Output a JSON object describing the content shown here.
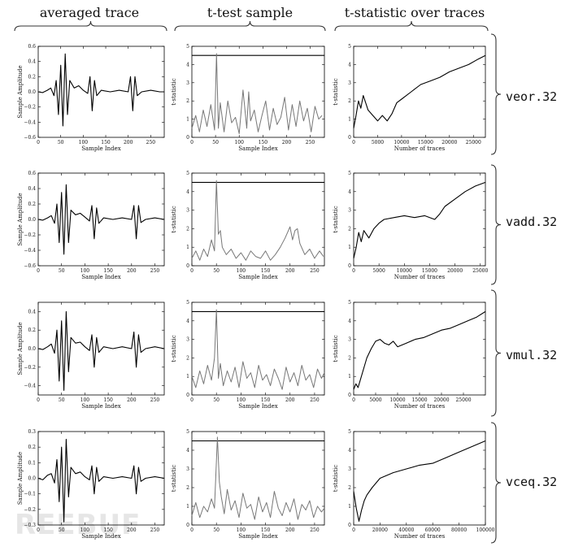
{
  "columns": {
    "avg": "averaged trace",
    "ttest": "t-test sample",
    "tstat": "t-statistic over traces"
  },
  "rows": [
    "veor.32",
    "vadd.32",
    "vmul.32",
    "vceq.32"
  ],
  "watermark": "REEBUF",
  "chart_data": [
    {
      "panel": "avg-veor",
      "type": "line",
      "xlabel": "Sample Index",
      "ylabel": "Sample Amplitude",
      "xlim": [
        0,
        280
      ],
      "ylim": [
        -0.6,
        0.6
      ],
      "xticks": [
        0,
        50,
        100,
        150,
        200,
        250
      ],
      "yticks": [
        -0.6,
        -0.4,
        -0.2,
        0.0,
        0.2,
        0.4,
        0.6
      ],
      "x": [
        0,
        10,
        20,
        28,
        35,
        40,
        45,
        50,
        55,
        60,
        65,
        70,
        80,
        90,
        100,
        110,
        115,
        120,
        125,
        130,
        140,
        160,
        180,
        200,
        205,
        210,
        215,
        220,
        230,
        250,
        270,
        280
      ],
      "y": [
        0,
        -0.01,
        0.02,
        0.05,
        -0.05,
        0.15,
        -0.3,
        0.35,
        -0.45,
        0.5,
        -0.3,
        0.15,
        0.05,
        0.08,
        0.02,
        -0.02,
        0.2,
        -0.25,
        0.15,
        -0.05,
        0.02,
        0.0,
        0.02,
        0.0,
        0.2,
        -0.25,
        0.2,
        -0.05,
        0.0,
        0.02,
        0.0,
        0.0
      ]
    },
    {
      "panel": "ttest-veor",
      "type": "line",
      "xlabel": "Sample Index",
      "ylabel": "t-statistic",
      "xlim": [
        0,
        280
      ],
      "ylim": [
        0,
        5
      ],
      "xticks": [
        0,
        50,
        100,
        150,
        200,
        250
      ],
      "yticks": [
        0,
        1,
        2,
        3,
        4,
        5
      ],
      "threshold": 4.5,
      "x": [
        0,
        8,
        16,
        24,
        32,
        40,
        48,
        52,
        56,
        60,
        68,
        76,
        84,
        92,
        100,
        108,
        116,
        120,
        124,
        132,
        140,
        148,
        156,
        164,
        172,
        180,
        188,
        196,
        204,
        212,
        220,
        228,
        236,
        244,
        252,
        260,
        268,
        275
      ],
      "y": [
        0.5,
        1.2,
        0.3,
        1.5,
        0.6,
        1.8,
        0.4,
        4.6,
        0.5,
        1.9,
        0.3,
        2.0,
        0.8,
        1.1,
        0.2,
        2.6,
        0.5,
        2.5,
        0.9,
        1.5,
        0.3,
        1.2,
        2.0,
        0.4,
        1.6,
        0.7,
        1.1,
        2.2,
        0.4,
        1.8,
        0.6,
        2.0,
        0.9,
        1.6,
        0.3,
        1.7,
        1.0,
        1.2
      ]
    },
    {
      "panel": "tstat-veor",
      "type": "line",
      "xlabel": "Number of traces",
      "ylabel": "t-statistic",
      "xlim": [
        0,
        27500
      ],
      "ylim": [
        0,
        5
      ],
      "xticks": [
        0,
        5000,
        10000,
        15000,
        20000,
        25000
      ],
      "yticks": [
        0,
        1,
        2,
        3,
        4,
        5
      ],
      "x": [
        0,
        500,
        1000,
        1500,
        2000,
        3000,
        4000,
        5000,
        6000,
        7000,
        8000,
        9000,
        10000,
        12000,
        14000,
        16000,
        18000,
        20000,
        22000,
        24000,
        26000,
        27500
      ],
      "y": [
        0.5,
        1.2,
        2.0,
        1.6,
        2.3,
        1.5,
        1.2,
        0.9,
        1.2,
        0.9,
        1.3,
        1.9,
        2.1,
        2.5,
        2.9,
        3.1,
        3.3,
        3.6,
        3.8,
        4.0,
        4.3,
        4.5
      ]
    },
    {
      "panel": "avg-vadd",
      "type": "line",
      "xlabel": "Sample Index",
      "ylabel": "Sample Amplitude",
      "xlim": [
        0,
        270
      ],
      "ylim": [
        -0.6,
        0.6
      ],
      "xticks": [
        0,
        50,
        100,
        150,
        200,
        250
      ],
      "yticks": [
        -0.6,
        -0.4,
        -0.2,
        0.0,
        0.2,
        0.4,
        0.6
      ],
      "x": [
        0,
        10,
        20,
        28,
        35,
        40,
        45,
        50,
        55,
        60,
        65,
        70,
        80,
        90,
        100,
        110,
        115,
        120,
        125,
        130,
        140,
        160,
        180,
        200,
        205,
        210,
        215,
        220,
        230,
        250,
        270
      ],
      "y": [
        0,
        -0.01,
        0.02,
        0.05,
        -0.05,
        0.2,
        -0.3,
        0.35,
        -0.45,
        0.45,
        -0.3,
        0.12,
        0.06,
        0.08,
        0.03,
        -0.02,
        0.18,
        -0.25,
        0.15,
        -0.05,
        0.02,
        0.0,
        0.02,
        0.0,
        0.18,
        -0.25,
        0.18,
        -0.04,
        0.0,
        0.02,
        0.0
      ]
    },
    {
      "panel": "ttest-vadd",
      "type": "line",
      "xlabel": "Sample Index",
      "ylabel": "t-statistic",
      "xlim": [
        0,
        270
      ],
      "ylim": [
        0,
        5
      ],
      "xticks": [
        0,
        50,
        100,
        150,
        200,
        250
      ],
      "yticks": [
        0,
        1,
        2,
        3,
        4,
        5
      ],
      "threshold": 4.5,
      "x": [
        0,
        8,
        16,
        24,
        32,
        40,
        46,
        50,
        54,
        58,
        62,
        70,
        80,
        90,
        100,
        110,
        120,
        130,
        140,
        150,
        160,
        170,
        180,
        190,
        200,
        205,
        210,
        215,
        220,
        230,
        240,
        250,
        260,
        268
      ],
      "y": [
        0.4,
        0.8,
        0.3,
        0.9,
        0.5,
        1.4,
        0.8,
        4.6,
        1.7,
        1.9,
        1.0,
        0.6,
        0.9,
        0.4,
        0.7,
        0.3,
        0.8,
        0.5,
        0.4,
        0.8,
        0.3,
        0.6,
        1.0,
        1.5,
        2.1,
        1.4,
        1.9,
        2.0,
        1.2,
        0.6,
        0.9,
        0.4,
        0.8,
        0.5
      ]
    },
    {
      "panel": "tstat-vadd",
      "type": "line",
      "xlabel": "Number of traces",
      "ylabel": "t-statistic",
      "xlim": [
        0,
        26000
      ],
      "ylim": [
        0,
        5
      ],
      "xticks": [
        0,
        5000,
        10000,
        15000,
        20000,
        25000
      ],
      "yticks": [
        0,
        1,
        2,
        3,
        4,
        5
      ],
      "x": [
        0,
        500,
        1000,
        1500,
        2000,
        3000,
        4000,
        5000,
        6000,
        8000,
        10000,
        12000,
        14000,
        16000,
        17000,
        18000,
        20000,
        22000,
        24000,
        26000
      ],
      "y": [
        0.4,
        1.0,
        1.8,
        1.3,
        1.9,
        1.5,
        2.0,
        2.3,
        2.5,
        2.6,
        2.7,
        2.6,
        2.7,
        2.5,
        2.8,
        3.2,
        3.6,
        4.0,
        4.3,
        4.5
      ]
    },
    {
      "panel": "avg-vmul",
      "type": "line",
      "xlabel": "Sample Index",
      "ylabel": "Sample Amplitude",
      "xlim": [
        0,
        270
      ],
      "ylim": [
        -0.5,
        0.5
      ],
      "xticks": [
        0,
        50,
        100,
        150,
        200,
        250
      ],
      "yticks": [
        -0.4,
        -0.2,
        0.0,
        0.2,
        0.4
      ],
      "x": [
        0,
        10,
        20,
        28,
        35,
        40,
        45,
        50,
        55,
        60,
        65,
        70,
        80,
        90,
        100,
        110,
        115,
        120,
        125,
        130,
        140,
        160,
        180,
        200,
        205,
        210,
        215,
        220,
        230,
        250,
        270
      ],
      "y": [
        0,
        -0.01,
        0.02,
        0.05,
        -0.05,
        0.2,
        -0.35,
        0.3,
        -0.45,
        0.4,
        -0.25,
        0.12,
        0.06,
        0.07,
        0.02,
        -0.02,
        0.15,
        -0.2,
        0.12,
        -0.04,
        0.02,
        0.0,
        0.02,
        0.0,
        0.18,
        -0.2,
        0.15,
        -0.04,
        0.0,
        0.02,
        0.0
      ]
    },
    {
      "panel": "ttest-vmul",
      "type": "line",
      "xlabel": "Sample Index",
      "ylabel": "t-statistic",
      "xlim": [
        0,
        270
      ],
      "ylim": [
        0,
        5
      ],
      "xticks": [
        0,
        50,
        100,
        150,
        200,
        250
      ],
      "yticks": [
        0,
        1,
        2,
        3,
        4,
        5
      ],
      "threshold": 4.5,
      "x": [
        0,
        8,
        16,
        24,
        32,
        40,
        46,
        50,
        54,
        58,
        64,
        72,
        80,
        88,
        96,
        104,
        112,
        120,
        128,
        136,
        144,
        152,
        160,
        168,
        176,
        184,
        192,
        200,
        208,
        216,
        224,
        232,
        240,
        248,
        256,
        264,
        270
      ],
      "y": [
        1.0,
        0.4,
        1.3,
        0.6,
        1.6,
        0.8,
        2.0,
        4.6,
        0.9,
        1.7,
        0.5,
        1.3,
        0.7,
        1.5,
        0.4,
        1.8,
        0.9,
        1.2,
        0.4,
        1.6,
        0.8,
        1.1,
        0.5,
        1.4,
        0.9,
        0.3,
        1.5,
        0.7,
        1.2,
        0.5,
        1.6,
        0.8,
        1.1,
        0.4,
        1.4,
        0.9,
        1.2
      ]
    },
    {
      "panel": "tstat-vmul",
      "type": "line",
      "xlabel": "Number of traces",
      "ylabel": "t-statistic",
      "xlim": [
        0,
        30000
      ],
      "ylim": [
        0,
        5
      ],
      "xticks": [
        0,
        5000,
        10000,
        15000,
        20000,
        25000
      ],
      "yticks": [
        0,
        1,
        2,
        3,
        4,
        5
      ],
      "x": [
        0,
        500,
        1000,
        1500,
        2000,
        3000,
        4000,
        5000,
        6000,
        7000,
        8000,
        9000,
        10000,
        12000,
        14000,
        16000,
        18000,
        20000,
        22000,
        24000,
        26000,
        28000,
        30000
      ],
      "y": [
        0.3,
        0.6,
        0.4,
        0.8,
        1.2,
        2.0,
        2.5,
        2.9,
        3.0,
        2.8,
        2.7,
        2.9,
        2.6,
        2.8,
        3.0,
        3.1,
        3.3,
        3.5,
        3.6,
        3.8,
        4.0,
        4.2,
        4.5
      ]
    },
    {
      "panel": "avg-vceq",
      "type": "line",
      "xlabel": "Sample Index",
      "ylabel": "Sample Amplitude",
      "xlim": [
        0,
        270
      ],
      "ylim": [
        -0.3,
        0.3
      ],
      "xticks": [
        0,
        50,
        100,
        150,
        200,
        250
      ],
      "yticks": [
        -0.3,
        -0.2,
        -0.1,
        0.0,
        0.1,
        0.2,
        0.3
      ],
      "x": [
        0,
        10,
        20,
        28,
        35,
        40,
        45,
        50,
        55,
        60,
        65,
        70,
        80,
        90,
        100,
        110,
        115,
        120,
        125,
        130,
        140,
        160,
        180,
        200,
        205,
        210,
        215,
        220,
        230,
        250,
        270
      ],
      "y": [
        0,
        -0.01,
        0.02,
        0.03,
        -0.03,
        0.12,
        -0.15,
        0.2,
        -0.28,
        0.25,
        -0.12,
        0.07,
        0.03,
        0.04,
        0.01,
        -0.01,
        0.08,
        -0.1,
        0.07,
        -0.02,
        0.01,
        0.0,
        0.01,
        0.0,
        0.08,
        -0.1,
        0.07,
        -0.02,
        0.0,
        0.01,
        0.0
      ]
    },
    {
      "panel": "ttest-vceq",
      "type": "line",
      "xlabel": "Sample Index",
      "ylabel": "t-statistic",
      "xlim": [
        0,
        270
      ],
      "ylim": [
        0,
        5
      ],
      "xticks": [
        0,
        50,
        100,
        150,
        200,
        250
      ],
      "yticks": [
        0,
        1,
        2,
        3,
        4,
        5
      ],
      "threshold": 4.5,
      "x": [
        0,
        8,
        16,
        24,
        32,
        40,
        46,
        52,
        56,
        60,
        66,
        72,
        80,
        88,
        96,
        104,
        112,
        120,
        128,
        136,
        144,
        152,
        160,
        168,
        176,
        184,
        192,
        200,
        208,
        216,
        224,
        232,
        240,
        248,
        256,
        264,
        270
      ],
      "y": [
        0.5,
        1.2,
        0.4,
        1.0,
        0.7,
        1.4,
        0.9,
        4.7,
        2.3,
        1.5,
        0.6,
        1.9,
        0.8,
        1.3,
        0.4,
        1.7,
        0.9,
        1.1,
        0.3,
        1.5,
        0.7,
        1.2,
        0.4,
        1.8,
        0.9,
        0.5,
        1.2,
        0.7,
        1.4,
        0.3,
        1.1,
        0.8,
        1.3,
        0.4,
        1.0,
        0.7,
        0.9
      ]
    },
    {
      "panel": "tstat-vceq",
      "type": "line",
      "xlabel": "Number of traces",
      "ylabel": "t-statistic",
      "xlim": [
        0,
        100000
      ],
      "ylim": [
        0,
        5
      ],
      "xticks": [
        0,
        20000,
        40000,
        60000,
        80000,
        100000
      ],
      "yticks": [
        0,
        1,
        2,
        3,
        4,
        5
      ],
      "x": [
        0,
        2000,
        4000,
        6000,
        8000,
        10000,
        14000,
        20000,
        30000,
        40000,
        50000,
        60000,
        70000,
        80000,
        90000,
        100000
      ],
      "y": [
        1.8,
        0.9,
        0.2,
        0.8,
        1.3,
        1.6,
        2.0,
        2.5,
        2.8,
        3.0,
        3.2,
        3.3,
        3.6,
        3.9,
        4.2,
        4.5
      ]
    }
  ]
}
